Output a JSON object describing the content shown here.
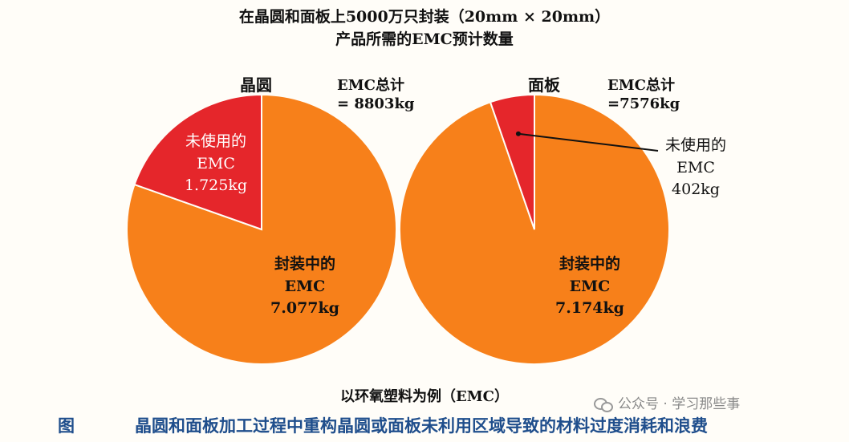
{
  "title": "在晶圆和面板上5000万只封装（20mm × 20mm）",
  "subtitle": "产品所需的EMC预计数量",
  "caption": "以环氧塑料为例（EMC）",
  "figure_label": "图",
  "figure_title": "晶圆和面板加工过程中重构晶圆或面板未利用区域导致的材料过度消耗和浪费",
  "watermark": "公众号 · 学习那些事",
  "colors": {
    "packaged": "#f7801a",
    "unused": "#e5262b",
    "caption": "#1f4e8c"
  },
  "chart_data": [
    {
      "type": "pie",
      "title": "晶圆",
      "total_line1": "EMC总计",
      "total_line2": "= 8803kg",
      "slices": [
        {
          "label_lines": [
            "未使用的",
            "EMC",
            "1.725kg"
          ],
          "value": 1725,
          "color": "#e5262b"
        },
        {
          "label_lines": [
            "封装中的",
            "EMC",
            "7.077kg"
          ],
          "value": 7077,
          "color": "#f7801a"
        }
      ]
    },
    {
      "type": "pie",
      "title": "面板",
      "total_line1": "EMC总计",
      "total_line2": "=7576kg",
      "slices": [
        {
          "label_lines": [
            "未使用的",
            "EMC",
            "402kg"
          ],
          "value": 402,
          "color": "#e5262b"
        },
        {
          "label_lines": [
            "封装中的",
            "EMC",
            "7.174kg"
          ],
          "value": 7174,
          "color": "#f7801a"
        }
      ]
    }
  ]
}
